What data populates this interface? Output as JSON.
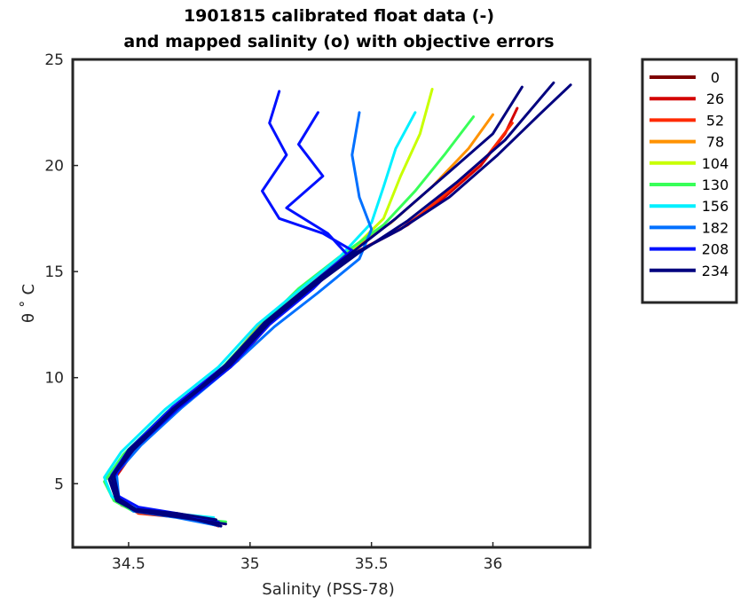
{
  "chart_data": {
    "type": "line",
    "title_line1": "1901815 calibrated float data (-)",
    "title_line2": "and mapped salinity (o) with objective errors",
    "xlabel": "Salinity (PSS-78)",
    "ylabel": "θ ˚ C",
    "xlim": [
      34.27,
      36.4
    ],
    "ylim": [
      2,
      25
    ],
    "xticks": [
      34.5,
      35,
      35.5,
      36
    ],
    "xtick_labels": [
      "34.5",
      "35",
      "35.5",
      "36"
    ],
    "yticks": [
      5,
      10,
      15,
      20,
      25
    ],
    "ytick_labels": [
      "5",
      "10",
      "15",
      "20",
      "25"
    ],
    "grid": false,
    "legend_placement": "outside-right",
    "legend": [
      {
        "label": "0",
        "color": "#7f0000"
      },
      {
        "label": "26",
        "color": "#d40000"
      },
      {
        "label": "52",
        "color": "#ff2a00"
      },
      {
        "label": "78",
        "color": "#ff9200"
      },
      {
        "label": "104",
        "color": "#c8ff00"
      },
      {
        "label": "130",
        "color": "#38ff58"
      },
      {
        "label": "156",
        "color": "#00f0ff"
      },
      {
        "label": "182",
        "color": "#0070ff"
      },
      {
        "label": "208",
        "color": "#0010ff"
      },
      {
        "label": "234",
        "color": "#00007f"
      }
    ],
    "series": [
      {
        "color": "#d40000",
        "x": [
          34.87,
          34.75,
          34.55,
          34.47,
          34.44,
          34.52,
          34.7,
          34.92,
          35.08,
          35.25,
          35.42,
          35.62,
          35.8,
          35.95,
          36.05,
          36.1
        ],
        "y": [
          3.0,
          3.4,
          3.6,
          4.0,
          5.2,
          6.5,
          8.5,
          10.5,
          12.5,
          14.2,
          15.8,
          17.0,
          18.5,
          20.0,
          21.5,
          22.7
        ]
      },
      {
        "color": "#ff2a00",
        "x": [
          34.9,
          34.72,
          34.54,
          34.46,
          34.43,
          34.53,
          34.72,
          34.95,
          35.1,
          35.27,
          35.45,
          35.65,
          35.82,
          35.98,
          36.08
        ],
        "y": [
          3.1,
          3.4,
          3.6,
          4.2,
          5.5,
          6.8,
          8.8,
          10.8,
          12.8,
          14.5,
          16.0,
          17.2,
          18.8,
          20.5,
          22.0
        ]
      },
      {
        "color": "#ff9200",
        "x": [
          34.88,
          34.7,
          34.53,
          34.45,
          34.42,
          34.5,
          34.68,
          34.9,
          35.05,
          35.22,
          35.4,
          35.58,
          35.75,
          35.9,
          36.0
        ],
        "y": [
          3.2,
          3.5,
          3.7,
          4.3,
          5.4,
          6.6,
          8.6,
          10.6,
          12.6,
          14.3,
          15.9,
          17.3,
          19.0,
          20.8,
          22.4
        ]
      },
      {
        "color": "#c8ff00",
        "x": [
          34.86,
          34.7,
          34.52,
          34.45,
          34.42,
          34.5,
          34.68,
          34.9,
          35.05,
          35.22,
          35.4,
          35.55,
          35.62,
          35.7,
          35.75
        ],
        "y": [
          3.3,
          3.5,
          3.8,
          4.3,
          5.2,
          6.5,
          8.5,
          10.5,
          12.5,
          14.2,
          15.8,
          17.5,
          19.5,
          21.5,
          23.6
        ]
      },
      {
        "color": "#38ff58",
        "x": [
          34.9,
          34.72,
          34.52,
          34.44,
          34.4,
          34.48,
          34.66,
          34.88,
          35.04,
          35.2,
          35.38,
          35.55,
          35.68,
          35.8,
          35.92
        ],
        "y": [
          3.2,
          3.4,
          3.7,
          4.2,
          5.1,
          6.4,
          8.4,
          10.4,
          12.4,
          14.2,
          15.8,
          17.2,
          18.8,
          20.5,
          22.3
        ]
      },
      {
        "color": "#00f0ff",
        "x": [
          34.85,
          34.68,
          34.51,
          34.43,
          34.4,
          34.47,
          34.65,
          34.87,
          35.03,
          35.2,
          35.37,
          35.5,
          35.55,
          35.6,
          35.68
        ],
        "y": [
          3.4,
          3.6,
          3.9,
          4.4,
          5.3,
          6.5,
          8.5,
          10.5,
          12.5,
          14.1,
          15.7,
          17.3,
          19.0,
          20.8,
          22.5
        ]
      },
      {
        "color": "#0070ff",
        "x": [
          34.88,
          34.7,
          34.52,
          34.46,
          34.45,
          34.55,
          34.72,
          34.93,
          35.1,
          35.28,
          35.45,
          35.5,
          35.45,
          35.42,
          35.45
        ],
        "y": [
          3.0,
          3.4,
          3.7,
          4.3,
          5.5,
          6.8,
          8.6,
          10.6,
          12.4,
          14.0,
          15.6,
          17.0,
          18.5,
          20.5,
          22.5
        ]
      },
      {
        "color": "#0010ff",
        "x": [
          34.86,
          34.7,
          34.53,
          34.45,
          34.43,
          34.5,
          34.68,
          34.9,
          35.06,
          35.24,
          35.42,
          35.3,
          35.12,
          35.05,
          35.15,
          35.08,
          35.12
        ],
        "y": [
          3.1,
          3.5,
          3.8,
          4.3,
          5.4,
          6.6,
          8.6,
          10.6,
          12.6,
          14.3,
          16.0,
          16.8,
          17.5,
          18.8,
          20.5,
          22.0,
          23.5
        ]
      },
      {
        "color": "#0010ff",
        "x": [
          34.87,
          34.7,
          34.54,
          34.46,
          34.44,
          34.52,
          34.7,
          34.92,
          35.08,
          35.26,
          35.4,
          35.32,
          35.15,
          35.3,
          35.2,
          35.28
        ],
        "y": [
          3.2,
          3.6,
          3.9,
          4.4,
          5.3,
          6.6,
          8.5,
          10.5,
          12.5,
          14.2,
          15.8,
          16.8,
          18.0,
          19.5,
          21.0,
          22.5
        ]
      },
      {
        "color": "#00007f",
        "x": [
          34.9,
          34.72,
          34.53,
          34.45,
          34.42,
          34.5,
          34.68,
          34.9,
          35.06,
          35.24,
          35.42,
          35.62,
          35.82,
          36.02,
          36.2,
          36.32
        ],
        "y": [
          3.1,
          3.4,
          3.7,
          4.2,
          5.2,
          6.5,
          8.5,
          10.5,
          12.5,
          14.2,
          15.8,
          17.0,
          18.5,
          20.5,
          22.5,
          23.8
        ]
      },
      {
        "color": "#00007f",
        "x": [
          34.88,
          34.71,
          34.52,
          34.45,
          34.43,
          34.52,
          34.7,
          34.92,
          35.08,
          35.26,
          35.45,
          35.65,
          35.85,
          36.05,
          36.25
        ],
        "y": [
          3.0,
          3.5,
          3.8,
          4.3,
          5.3,
          6.6,
          8.6,
          10.6,
          12.6,
          14.3,
          15.9,
          17.4,
          19.2,
          21.2,
          23.9
        ]
      },
      {
        "color": "#00007f",
        "x": [
          34.86,
          34.7,
          34.53,
          34.46,
          34.44,
          34.5,
          34.7,
          34.9,
          35.06,
          35.24,
          35.42,
          35.6,
          35.78,
          36.0,
          36.12
        ],
        "y": [
          3.3,
          3.6,
          3.8,
          4.3,
          5.4,
          6.6,
          8.6,
          10.6,
          12.6,
          14.3,
          15.9,
          17.5,
          19.3,
          21.5,
          23.7
        ]
      }
    ]
  }
}
